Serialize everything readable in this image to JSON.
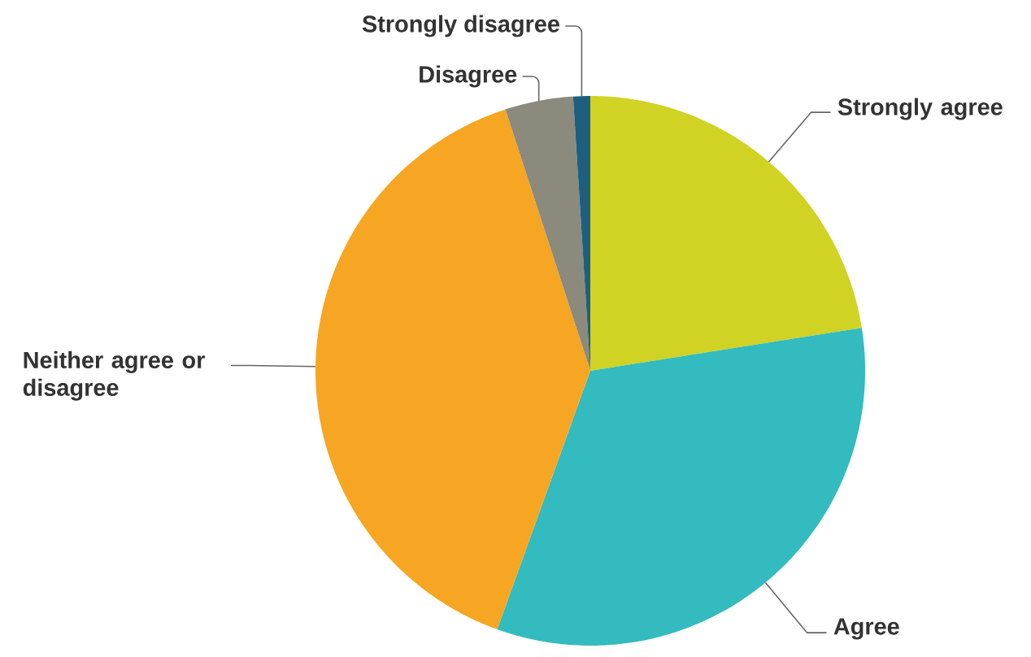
{
  "chart_data": {
    "type": "pie",
    "categories": [
      "Strongly agree",
      "Agree",
      "Neither agree or disagree",
      "Disagree",
      "Strongly disagree"
    ],
    "values": [
      22.5,
      33,
      39.5,
      4,
      1
    ],
    "colors": [
      "#d0d323",
      "#33bbbf",
      "#f6a623",
      "#8c8a7c",
      "#1e5f80"
    ]
  }
}
